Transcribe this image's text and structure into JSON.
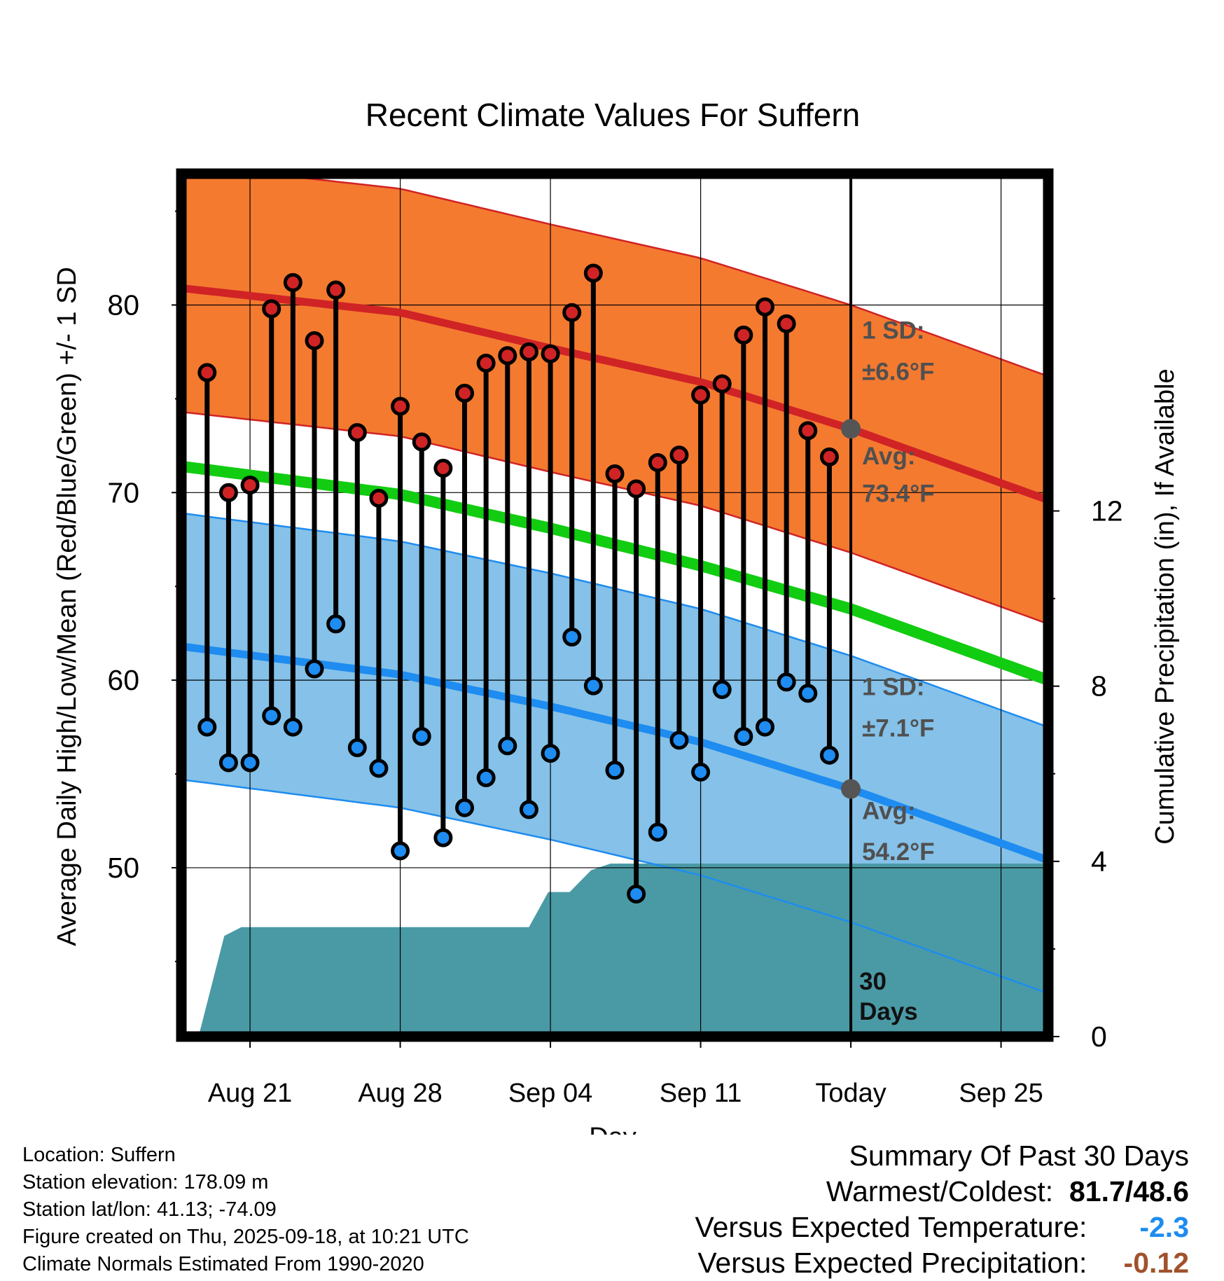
{
  "chart_data": {
    "type": "line",
    "title": "Recent Climate Values For Suffern",
    "xlabel": "Day",
    "ylabel": "Average Daily High/Low/Mean (Red/Blue/Green) +/- 1 SD",
    "y2label": "Cumulative Precipitation (in), If Available",
    "ylim": [
      41,
      87
    ],
    "y2lim": [
      0,
      19.7
    ],
    "xlim": [
      -1.2,
      39.2
    ],
    "yticks": [
      "50",
      "60",
      "70",
      "80"
    ],
    "y2ticks": [
      "0",
      "4",
      "8",
      "12"
    ],
    "xtick_labels": [
      "Aug 21",
      "Aug 28",
      "Sep 04",
      "Sep 11",
      "Today",
      "Sep 25"
    ],
    "xtick_positions": [
      2,
      9,
      16,
      23,
      30,
      37
    ],
    "normal_high": [
      {
        "day": -1.2,
        "value": 80.9
      },
      {
        "day": 9,
        "value": 79.6
      },
      {
        "day": 16,
        "value": 77.7
      },
      {
        "day": 23,
        "value": 75.9
      },
      {
        "day": 30,
        "value": 73.4
      },
      {
        "day": 39.2,
        "value": 69.6
      }
    ],
    "high_sd": 6.6,
    "normal_low": [
      {
        "day": -1.2,
        "value": 61.8
      },
      {
        "day": 9,
        "value": 60.3
      },
      {
        "day": 16,
        "value": 58.6
      },
      {
        "day": 23,
        "value": 56.7
      },
      {
        "day": 30,
        "value": 54.2
      },
      {
        "day": 39.2,
        "value": 50.4
      }
    ],
    "low_sd": 7.1,
    "normal_mean": [
      {
        "day": -1.2,
        "value": 71.4
      },
      {
        "day": 9,
        "value": 69.9
      },
      {
        "day": 16,
        "value": 68.1
      },
      {
        "day": 23,
        "value": 66.1
      },
      {
        "day": 30,
        "value": 63.8
      },
      {
        "day": 39.2,
        "value": 60.0
      }
    ],
    "daily": [
      {
        "day": 0,
        "high": 76.4,
        "low": 57.5
      },
      {
        "day": 1,
        "high": 70.0,
        "low": 55.6
      },
      {
        "day": 2,
        "high": 70.4,
        "low": 55.6
      },
      {
        "day": 3,
        "high": 79.8,
        "low": 58.1
      },
      {
        "day": 4,
        "high": 81.2,
        "low": 57.5
      },
      {
        "day": 5,
        "high": 78.1,
        "low": 60.6
      },
      {
        "day": 6,
        "high": 80.8,
        "low": 63.0
      },
      {
        "day": 7,
        "high": 73.2,
        "low": 56.4
      },
      {
        "day": 8,
        "high": 69.7,
        "low": 55.3
      },
      {
        "day": 9,
        "high": 74.6,
        "low": 50.9
      },
      {
        "day": 10,
        "high": 72.7,
        "low": 57.0
      },
      {
        "day": 11,
        "high": 71.3,
        "low": 51.6
      },
      {
        "day": 12,
        "high": 75.3,
        "low": 53.2
      },
      {
        "day": 13,
        "high": 76.9,
        "low": 54.8
      },
      {
        "day": 14,
        "high": 77.3,
        "low": 56.5
      },
      {
        "day": 15,
        "high": 77.5,
        "low": 53.1
      },
      {
        "day": 16,
        "high": 77.4,
        "low": 56.1
      },
      {
        "day": 17,
        "high": 79.6,
        "low": 62.3
      },
      {
        "day": 18,
        "high": 81.7,
        "low": 59.7
      },
      {
        "day": 19,
        "high": 71.0,
        "low": 55.2
      },
      {
        "day": 20,
        "high": 70.2,
        "low": 48.6
      },
      {
        "day": 21,
        "high": 71.6,
        "low": 51.9
      },
      {
        "day": 22,
        "high": 72.0,
        "low": 56.8
      },
      {
        "day": 23,
        "high": 75.2,
        "low": 55.1
      },
      {
        "day": 24,
        "high": 75.8,
        "low": 59.5
      },
      {
        "day": 25,
        "high": 78.4,
        "low": 57.0
      },
      {
        "day": 26,
        "high": 79.9,
        "low": 57.5
      },
      {
        "day": 27,
        "high": 79.0,
        "low": 59.9
      },
      {
        "day": 28,
        "high": 73.3,
        "low": 59.3
      },
      {
        "day": 29,
        "high": 71.9,
        "low": 56.0
      }
    ],
    "precip_cumulative": [
      {
        "day": -0.4,
        "value": 0.0
      },
      {
        "day": 0.8,
        "value": 2.3
      },
      {
        "day": 1.6,
        "value": 2.5
      },
      {
        "day": 15.0,
        "value": 2.5
      },
      {
        "day": 15.9,
        "value": 3.3
      },
      {
        "day": 16.9,
        "value": 3.3
      },
      {
        "day": 17.9,
        "value": 3.8
      },
      {
        "day": 18.8,
        "value": 3.95
      },
      {
        "day": 39.2,
        "value": 3.95
      }
    ],
    "annotations": {
      "high_sd_line1": "1 SD:",
      "high_sd_line2": "±6.6°F",
      "high_avg_line1": "Avg:",
      "high_avg_line2": "73.4°F",
      "low_sd_line1": "1 SD:",
      "low_sd_line2": "±7.1°F",
      "low_avg_line1": "Avg:",
      "low_avg_line2": "54.2°F",
      "window_line1": "30",
      "window_line2": "Days"
    },
    "colors": {
      "high_band": "#f47a30",
      "high_line": "#d02325",
      "low_band": "#85c1e8",
      "low_line": "#1e8cf0",
      "mean_line": "#11cc11",
      "precip": "#4a9aa5",
      "high_dot": "#d02325",
      "low_dot": "#1e8cf0",
      "annotation": "#505050"
    }
  },
  "metadata": {
    "location": "Location: Suffern",
    "elevation": "Station elevation: 178.09 m",
    "latlon": "Station lat/lon: 41.13; -74.09",
    "created": "Figure created on Thu, 2025-09-18, at 10:21 UTC",
    "normals": "Climate Normals Estimated From 1990-2020"
  },
  "summary": {
    "title": "Summary Of Past 30 Days",
    "warmest_label": "Warmest/Coldest:",
    "warmest_value": "81.7/48.6",
    "temp_label": "Versus Expected Temperature:",
    "temp_value": "-2.3",
    "temp_color": "#1e8cf0",
    "precip_label": "Versus Expected Precipitation:",
    "precip_value": "-0.12",
    "precip_color": "#a0522d"
  }
}
